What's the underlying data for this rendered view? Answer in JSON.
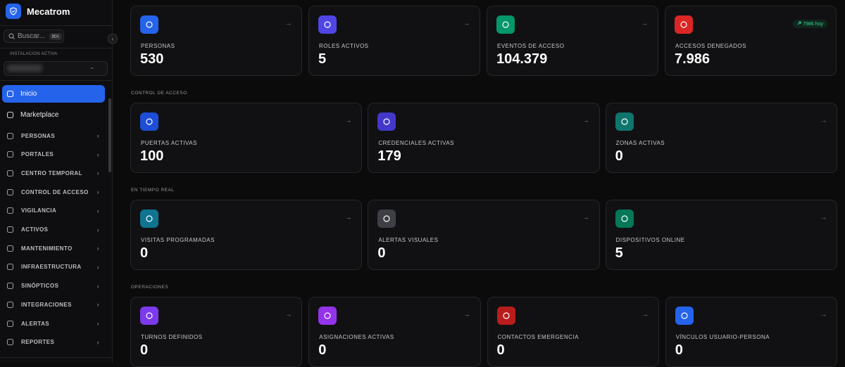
{
  "sidebar": {
    "brand": "Mecatrom",
    "search_placeholder": "Buscar...",
    "search_shortcut": "⌘K",
    "installation_label": "INSTALACION ACTIVA",
    "nav": [
      "Inicio",
      "Marketplace"
    ],
    "groups": [
      "PERSONAS",
      "PORTALES",
      "CENTRO TEMPORAL",
      "CONTROL DE ACCESO",
      "VIGILANCIA",
      "ACTIVOS",
      "MANTENIMIENTO",
      "INFRAESTRUCTURA",
      "SINÓPTICOS",
      "INTEGRACIONES",
      "ALERTAS",
      "REPORTES"
    ]
  },
  "main": {
    "top_cards": [
      {
        "label": "PERSONAS",
        "value": "530"
      },
      {
        "label": "ROLES ACTIVOS",
        "value": "5"
      },
      {
        "label": "EVENTOS DE ACCESO",
        "value": "104.379"
      },
      {
        "label": "ACCESOS DENEGADOS",
        "value": "7.986",
        "badge": "7986 hoy"
      }
    ],
    "sections": [
      {
        "title": "CONTROL DE ACCESO",
        "cards": [
          {
            "label": "PUERTAS ACTIVAS",
            "value": "100"
          },
          {
            "label": "CREDENCIALES ACTIVAS",
            "value": "179"
          },
          {
            "label": "ZONAS ACTIVAS",
            "value": "0"
          }
        ]
      },
      {
        "title": "EN TIEMPO REAL",
        "cards": [
          {
            "label": "VISITAS PROGRAMADAS",
            "value": "0"
          },
          {
            "label": "ALERTAS VISUALES",
            "value": "0"
          },
          {
            "label": "DISPOSITIVOS ONLINE",
            "value": "5"
          }
        ]
      },
      {
        "title": "OPERACIONES",
        "cards": [
          {
            "label": "TURNOS DEFINIDOS",
            "value": "0"
          },
          {
            "label": "ASIGNACIONES ACTIVAS",
            "value": "0"
          },
          {
            "label": "CONTACTOS EMERGENCIA",
            "value": "0"
          },
          {
            "label": "VÍNCULOS USUARIO-PERSONA",
            "value": "0"
          }
        ]
      }
    ]
  }
}
